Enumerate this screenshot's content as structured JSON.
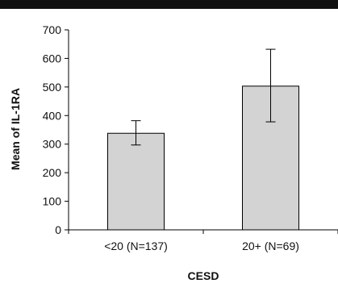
{
  "chart_data": {
    "type": "bar",
    "categories": [
      "<20 (N=137)",
      "20+ (N=69)"
    ],
    "values": [
      338,
      503
    ],
    "error_bars": [
      {
        "low": 297,
        "high": 382
      },
      {
        "low": 378,
        "high": 632
      }
    ],
    "xlabel": "CESD",
    "ylabel": "Mean of IL-1RA",
    "ylim": [
      0,
      700
    ],
    "yticks": [
      0,
      100,
      200,
      300,
      400,
      500,
      600,
      700
    ],
    "grid": false,
    "colors": {
      "bar_fill": "#d3d3d3",
      "bar_stroke": "#000000",
      "axis": "#000000",
      "top_bar": "#111111"
    }
  }
}
